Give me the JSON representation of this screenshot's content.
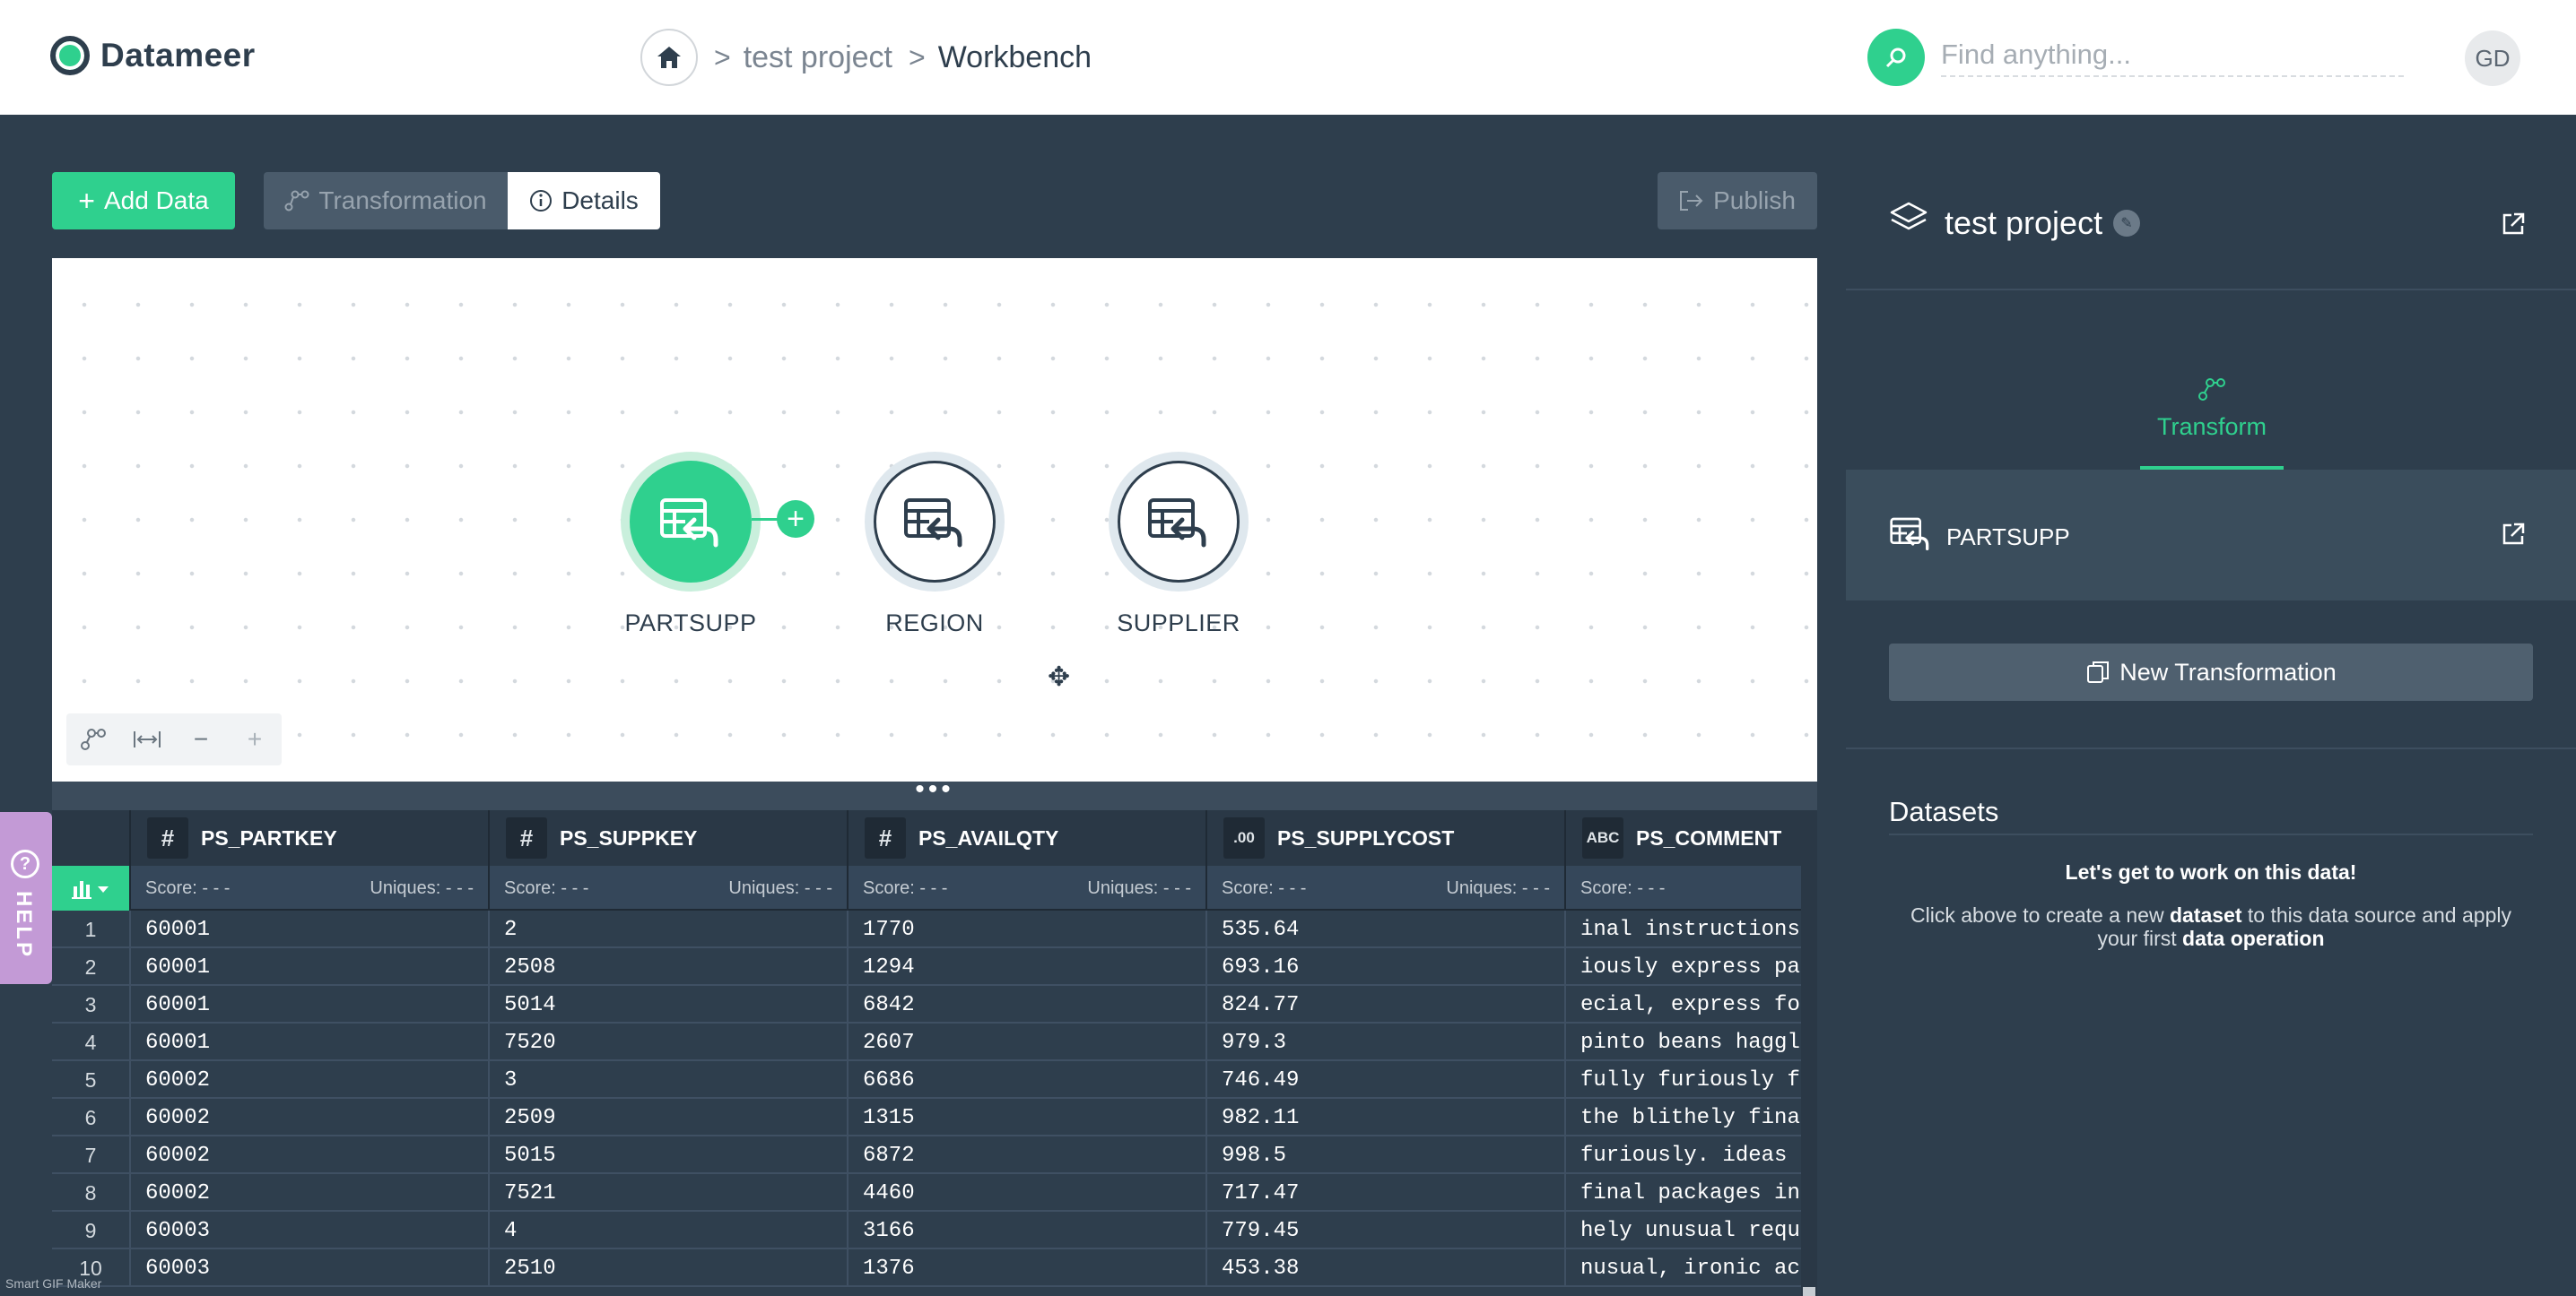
{
  "header": {
    "app_name": "Datameer",
    "breadcrumb": [
      "test project",
      "Workbench"
    ],
    "breadcrumb_separator": ">",
    "search_placeholder": "Find anything...",
    "user_initials": "GD"
  },
  "toolbar": {
    "add_data_label": "Add Data",
    "add_data_plus": "+",
    "transformation_label": "Transformation",
    "details_label": "Details",
    "publish_label": "Publish"
  },
  "canvas": {
    "nodes": [
      {
        "label": "PARTSUPP",
        "active": true
      },
      {
        "label": "REGION",
        "active": false
      },
      {
        "label": "SUPPLIER",
        "active": false
      }
    ],
    "add_node_symbol": "+",
    "zoom_out_symbol": "−",
    "zoom_in_symbol": "+"
  },
  "grid": {
    "splitter_dots": "•••",
    "columns": [
      {
        "type": "#",
        "name": "PS_PARTKEY",
        "score": "Score: - - -",
        "uniques": "Uniques: - - -"
      },
      {
        "type": "#",
        "name": "PS_SUPPKEY",
        "score": "Score: - - -",
        "uniques": "Uniques: - - -"
      },
      {
        "type": "#",
        "name": "PS_AVAILQTY",
        "score": "Score: - - -",
        "uniques": "Uniques: - - -"
      },
      {
        "type": ".00",
        "name": "PS_SUPPLYCOST",
        "score": "Score: - - -",
        "uniques": "Uniques: - - -"
      },
      {
        "type": "ABC",
        "name": "PS_COMMENT",
        "score": "Score: - - -",
        "uniques": ""
      }
    ],
    "rows": [
      [
        "1",
        "60001",
        "2",
        "1770",
        "535.64",
        "inal instructions"
      ],
      [
        "2",
        "60001",
        "2508",
        "1294",
        "693.16",
        "iously express pa"
      ],
      [
        "3",
        "60001",
        "5014",
        "6842",
        "824.77",
        "ecial, express fo"
      ],
      [
        "4",
        "60001",
        "7520",
        "2607",
        "979.3",
        "pinto beans haggl"
      ],
      [
        "5",
        "60002",
        "3",
        "6686",
        "746.49",
        "fully furiously f"
      ],
      [
        "6",
        "60002",
        "2509",
        "1315",
        "982.11",
        "the blithely fina"
      ],
      [
        "7",
        "60002",
        "5015",
        "6872",
        "998.5",
        "furiously. ideas "
      ],
      [
        "8",
        "60002",
        "7521",
        "4460",
        "717.47",
        "final packages in"
      ],
      [
        "9",
        "60003",
        "4",
        "3166",
        "779.45",
        "hely unusual requ"
      ],
      [
        "10",
        "60003",
        "2510",
        "1376",
        "453.38",
        "nusual, ironic ac"
      ]
    ]
  },
  "help": {
    "label": "HELP",
    "symbol": "?"
  },
  "watermark": "Smart GIF Maker",
  "panel": {
    "project_title": "test project",
    "tab_label": "Transform",
    "selected_dataset": "PARTSUPP",
    "new_transformation_label": "New Transformation",
    "datasets_title": "Datasets",
    "empty_title": "Let's get to work on this data!",
    "empty_text_1": "Click above to create a new ",
    "empty_text_bold_1": "dataset",
    "empty_text_2": " to this data source and apply your first ",
    "empty_text_bold_2": "data operation"
  },
  "colors": {
    "accent": "#2fd08e",
    "background": "#2e3e4d",
    "help": "#c39ad6"
  }
}
